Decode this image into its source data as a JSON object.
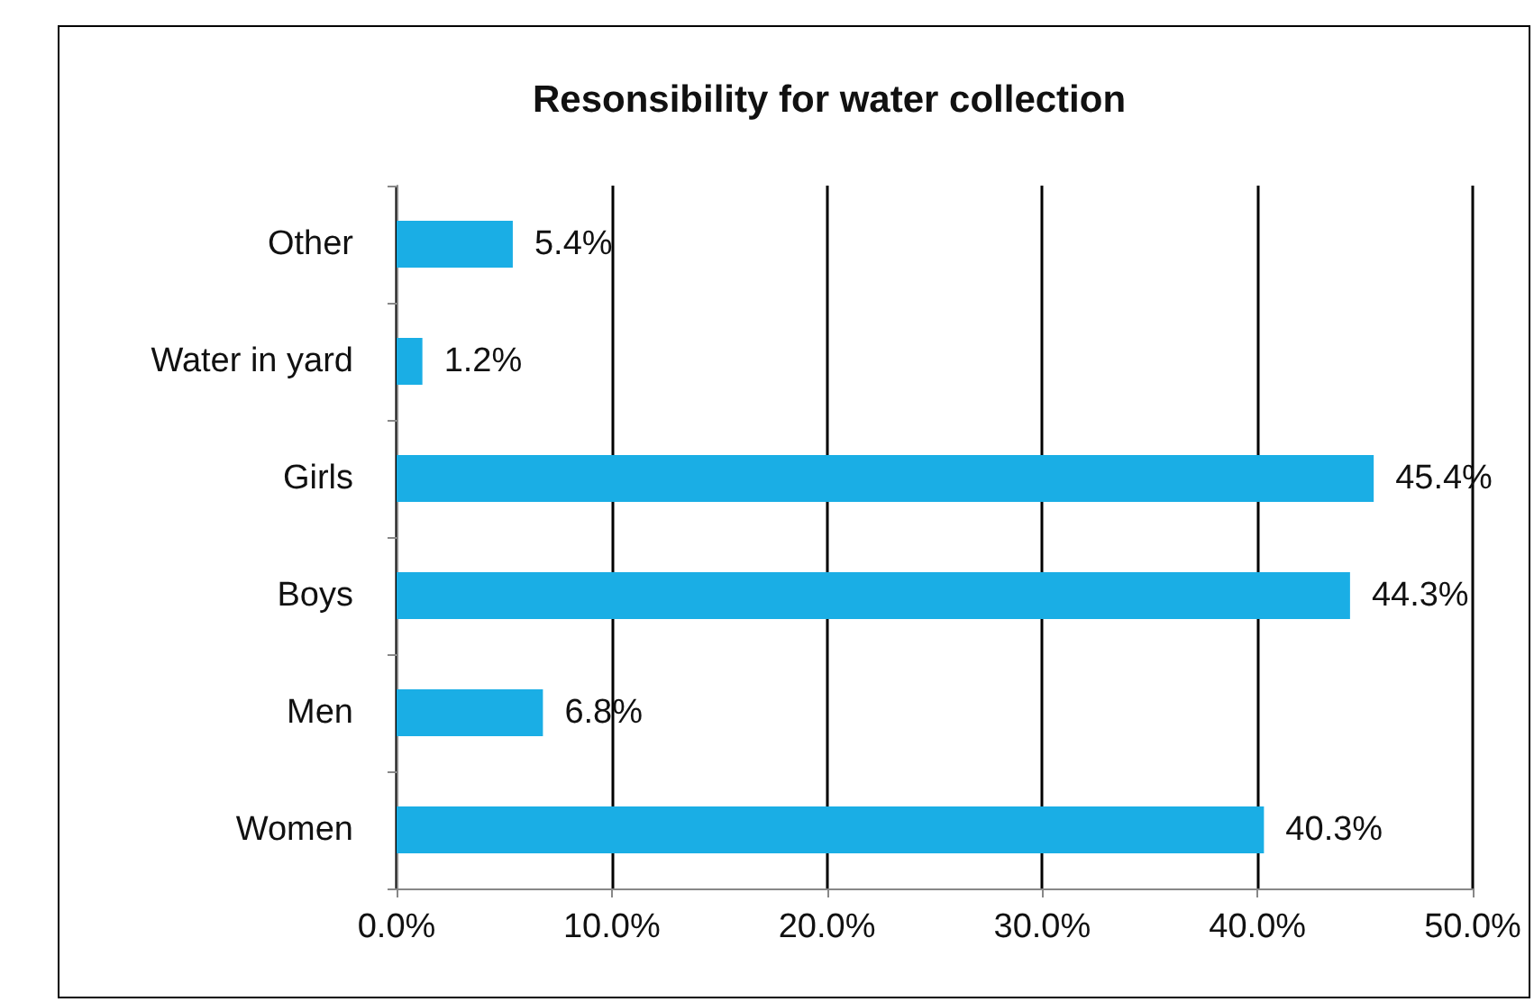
{
  "chart_data": {
    "type": "bar",
    "orientation": "horizontal",
    "title": "Resonsibility for water collection",
    "categories": [
      "Other",
      "Water in yard",
      "Girls",
      "Boys",
      "Men",
      "Women"
    ],
    "values": [
      5.4,
      1.2,
      45.4,
      44.3,
      6.8,
      40.3
    ],
    "value_labels": [
      "5.4%",
      "1.2%",
      "45.4%",
      "44.3%",
      "6.8%",
      "40.3%"
    ],
    "color": "#1aaee5",
    "xlim": [
      0,
      50
    ],
    "xticks": [
      {
        "value": 0,
        "label": "0.0%"
      },
      {
        "value": 10,
        "label": "10.0%"
      },
      {
        "value": 20,
        "label": "20.0%"
      },
      {
        "value": 30,
        "label": "30.0%"
      },
      {
        "value": 40,
        "label": "40.0%"
      },
      {
        "value": 50,
        "label": "50.0%"
      }
    ],
    "grid": "x"
  }
}
